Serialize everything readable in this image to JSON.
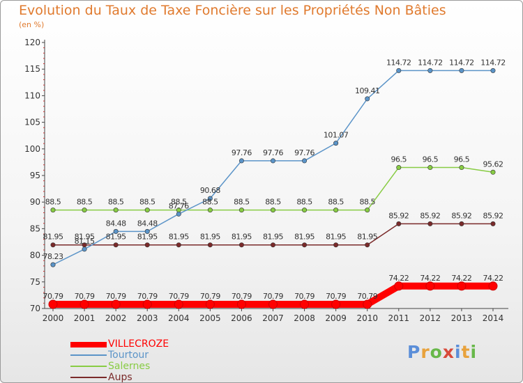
{
  "chart_data": {
    "type": "line",
    "title": "Evolution du Taux de Taxe Foncière sur les Propriétés Non Bâties",
    "subtitle": "(en %)",
    "xlabel": "",
    "ylabel": "",
    "ylim": [
      70,
      120
    ],
    "yticks": [
      70,
      75,
      80,
      85,
      90,
      95,
      100,
      105,
      110,
      115,
      120
    ],
    "categories": [
      "2000",
      "2001",
      "2002",
      "2003",
      "2004",
      "2005",
      "2006",
      "2007",
      "2008",
      "2009",
      "2010",
      "2011",
      "2012",
      "2013",
      "2014"
    ],
    "series": [
      {
        "name": "VILLECROZE",
        "color": "#ff0000",
        "style": "thick",
        "values": [
          70.79,
          70.79,
          70.79,
          70.79,
          70.79,
          70.79,
          70.79,
          70.79,
          70.79,
          70.79,
          70.79,
          74.22,
          74.22,
          74.22,
          74.22
        ],
        "labels": [
          "70.79",
          "70.79",
          "70.79",
          "70.79",
          "70.79",
          "70.79",
          "70.79",
          "70.79",
          "70.79",
          "70.79",
          "70.79",
          "74.22",
          "74.22",
          "74.22",
          "74.22"
        ]
      },
      {
        "name": "Tourtour",
        "color": "#5b94c8",
        "style": "thin",
        "values": [
          78.23,
          81.15,
          84.48,
          84.48,
          87.76,
          90.68,
          97.76,
          97.76,
          97.76,
          101.07,
          109.41,
          114.72,
          114.72,
          114.72,
          114.72
        ],
        "labels": [
          "78.23",
          "81.15",
          "84.48",
          "84.48",
          "87.76",
          "90.68",
          "97.76",
          "97.76",
          "97.76",
          "101.07",
          "109.41",
          "114.72",
          "114.72",
          "114.72",
          "114.72"
        ]
      },
      {
        "name": "Salernes",
        "color": "#88cc44",
        "style": "thin",
        "values": [
          88.5,
          88.5,
          88.5,
          88.5,
          88.5,
          88.5,
          88.5,
          88.5,
          88.5,
          88.5,
          88.5,
          96.5,
          96.5,
          96.5,
          95.62
        ],
        "labels": [
          "88.5",
          "88.5",
          "88.5",
          "88.5",
          "88.5",
          "88.5",
          "88.5",
          "88.5",
          "88.5",
          "88.5",
          "88.5",
          "96.5",
          "96.5",
          "96.5",
          "95.62"
        ]
      },
      {
        "name": "Aups",
        "color": "#7a2a2a",
        "style": "thin",
        "values": [
          81.95,
          81.95,
          81.95,
          81.95,
          81.95,
          81.95,
          81.95,
          81.95,
          81.95,
          81.95,
          81.95,
          85.92,
          85.92,
          85.92,
          85.92
        ],
        "labels": [
          "81.95",
          "81.95",
          "81.95",
          "81.95",
          "81.95",
          "81.95",
          "81.95",
          "81.95",
          "81.95",
          "81.95",
          "81.95",
          "85.92",
          "85.92",
          "85.92",
          "85.92"
        ]
      }
    ],
    "legend": [
      "VILLECROZE",
      "Tourtour",
      "Salernes",
      "Aups"
    ],
    "grid": false
  },
  "brand": {
    "logo_text": "Proxiti",
    "title_color": "#e07a2e"
  }
}
